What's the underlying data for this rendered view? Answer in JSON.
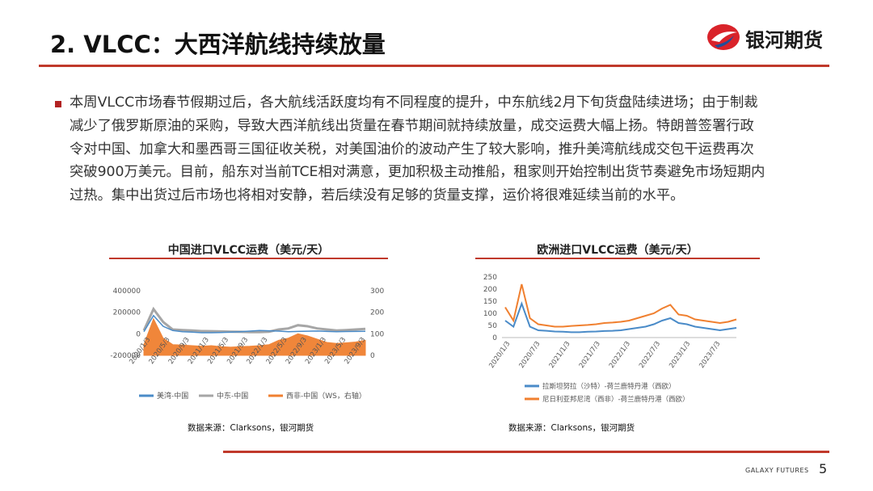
{
  "slide": {
    "title": "2. VLCC：大西洋航线持续放量",
    "brand": "银河期货",
    "footer_brand": "GALAXY FUTURES",
    "page_number": "5",
    "accent_color": "#c0392b"
  },
  "paragraph": {
    "lines": [
      "本周VLCC市场春节假期过后，各大航线活跃度均有不同程度的提升，中东航线2月下旬货盘陆续进场；由于制裁",
      "减少了俄罗斯原油的采购，导致大西洋航线出货量在春节期间就持续放量，成交运费大幅上扬。特朗普签署行政",
      "令对中国、加拿大和墨西哥三国征收关税，对美国油价的波动产生了较大影响，推升美湾航线成交包干运费再次",
      "突破900万美元。目前，船东对当前TCE相对满意，更加积极主动推船，租家则开始控制出货节奏避免市场短期内",
      "过热。集中出货过后市场也将相对安静，若后续没有足够的货量支撑，运价将很难延续当前的水平。"
    ]
  },
  "chart_data": [
    {
      "type": "line",
      "title": "中国进口VLCC运费（美元/天）",
      "source": "数据来源：Clarksons，银河期货",
      "x_ticks": [
        "2020/1/3",
        "2020/5/3",
        "2020/9/3",
        "2021/1/3",
        "2021/5/3",
        "2021/9/3",
        "2022/1/3",
        "2022/5/3",
        "2022/9/3",
        "2023/1/3",
        "2023/5/3",
        "2023/9/3"
      ],
      "ylim": [
        -200000,
        400000
      ],
      "y_ticks": [
        "400000",
        "200000",
        "0",
        "-200000"
      ],
      "y2lim": [
        0,
        300
      ],
      "y2_ticks": [
        "300",
        "200",
        "100",
        "0"
      ],
      "legend_position": "bottom",
      "series": [
        {
          "name": "美湾-中国",
          "color": "#4a8bc8",
          "axis": "left",
          "values": [
            20000,
            170000,
            70000,
            30000,
            20000,
            15000,
            10000,
            10000,
            12000,
            15000,
            20000,
            25000,
            30000,
            28000,
            25000,
            20000,
            22000,
            24000,
            26000,
            22000,
            20000,
            21000,
            22000,
            23000
          ]
        },
        {
          "name": "中东-中国",
          "color": "#a6a6a6",
          "axis": "left",
          "values": [
            30000,
            230000,
            110000,
            40000,
            35000,
            30000,
            25000,
            24000,
            22000,
            20000,
            18000,
            15000,
            15000,
            20000,
            40000,
            50000,
            80000,
            70000,
            50000,
            40000,
            30000,
            35000,
            40000,
            45000
          ]
        },
        {
          "name": "西非-中国（WS，右轴）",
          "color": "#f08030",
          "axis": "right",
          "values": [
            50,
            170,
            80,
            50,
            48,
            45,
            42,
            45,
            40,
            38,
            40,
            42,
            45,
            50,
            70,
            80,
            100,
            90,
            75,
            60,
            55,
            58,
            62,
            70
          ]
        }
      ]
    },
    {
      "type": "line",
      "title": "欧洲进口VLCC运费（美元/天）",
      "source": "数据来源：Clarksons，银河期货",
      "x_ticks": [
        "2020/1/3",
        "2020/7/3",
        "2021/1/3",
        "2021/7/3",
        "2022/1/3",
        "2022/7/3",
        "2023/1/3",
        "2023/7/3"
      ],
      "ylim": [
        0,
        250
      ],
      "y_ticks": [
        "250",
        "200",
        "150",
        "100",
        "50",
        "0"
      ],
      "legend_position": "bottom",
      "series": [
        {
          "name": "拉斯坦努拉（沙特）-荷兰鹿特丹港（西欧）",
          "color": "#4a8bc8",
          "values": [
            70,
            45,
            140,
            45,
            30,
            28,
            25,
            24,
            22,
            22,
            24,
            25,
            27,
            28,
            30,
            35,
            40,
            45,
            55,
            70,
            80,
            60,
            55,
            45,
            40,
            35,
            30,
            35,
            40
          ]
        },
        {
          "name": "尼日利亚邦尼湾（西非）-荷兰鹿特丹港（西欧）",
          "color": "#f08030",
          "values": [
            125,
            70,
            220,
            80,
            55,
            50,
            45,
            45,
            48,
            50,
            52,
            55,
            60,
            62,
            65,
            70,
            80,
            90,
            100,
            120,
            135,
            95,
            90,
            75,
            70,
            65,
            60,
            65,
            75
          ]
        }
      ]
    }
  ]
}
